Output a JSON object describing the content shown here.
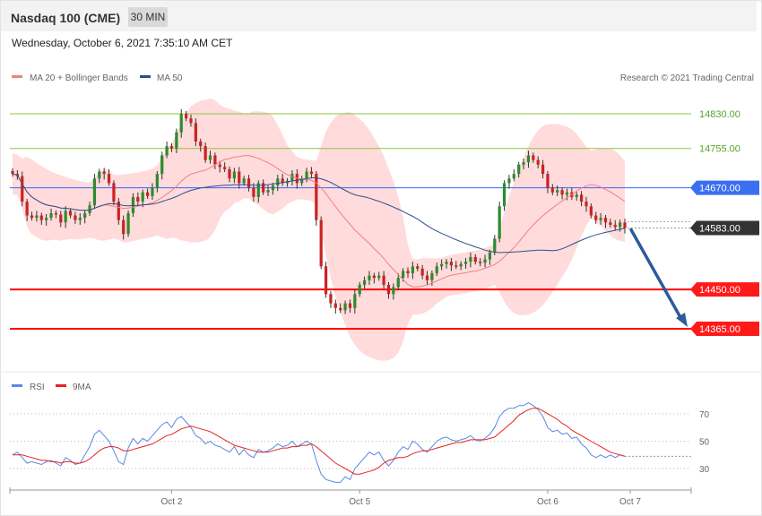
{
  "header": {
    "title": "Nasdaq 100 (CME)",
    "timeframe": "30 MIN"
  },
  "date": "Wednesday, October 6, 2021 7:35:10 AM CET",
  "legend": {
    "bb": "MA 20 + Bollinger Bands",
    "ma50": "MA 50",
    "rsi": "RSI",
    "ma9": "9MA"
  },
  "credit": "Research © 2021 Trading Central",
  "colors": {
    "resistance": "#8dc63f",
    "pivot": "#3366ff",
    "support": "#ff0000",
    "current": "#333333",
    "bands": "#ffd5d5",
    "ma50": "#2c4f8c",
    "bull": "#2e8b2e",
    "bear": "#cc2222",
    "arrow": "#2f5a9a",
    "rsi": "#5b87e0",
    "rsi_ma": "#e52222"
  },
  "chart_data": [
    {
      "type": "candlestick",
      "title": "Nasdaq 100 (CME)",
      "timeframe": "30 MIN",
      "ylim": [
        14300,
        14860
      ],
      "x_ticks": [
        "Oct 2",
        "Oct 5",
        "Oct 6",
        "Oct 7"
      ],
      "levels": [
        {
          "label": "14830.00",
          "value": 14830,
          "kind": "resistance"
        },
        {
          "label": "14755.00",
          "value": 14755,
          "kind": "resistance"
        },
        {
          "label": "14670.00",
          "value": 14670,
          "kind": "pivot"
        },
        {
          "label": "14583.00",
          "value": 14583,
          "kind": "current"
        },
        {
          "label": "14450.00",
          "value": 14450,
          "kind": "support"
        },
        {
          "label": "14365.00",
          "value": 14365,
          "kind": "support"
        }
      ],
      "close": [
        14700,
        14695,
        14640,
        14610,
        14605,
        14610,
        14600,
        14605,
        14615,
        14612,
        14595,
        14620,
        14610,
        14600,
        14605,
        14615,
        14632,
        14690,
        14705,
        14700,
        14680,
        14640,
        14600,
        14570,
        14615,
        14650,
        14640,
        14660,
        14652,
        14670,
        14700,
        14740,
        14760,
        14755,
        14790,
        14830,
        14820,
        14810,
        14770,
        14760,
        14730,
        14740,
        14720,
        14715,
        14710,
        14690,
        14705,
        14680,
        14690,
        14670,
        14650,
        14680,
        14660,
        14665,
        14675,
        14690,
        14680,
        14685,
        14700,
        14680,
        14690,
        14705,
        14700,
        14600,
        14500,
        14440,
        14420,
        14410,
        14405,
        14420,
        14410,
        14440,
        14460,
        14470,
        14480,
        14475,
        14480,
        14460,
        14440,
        14455,
        14475,
        14490,
        14485,
        14500,
        14495,
        14480,
        14470,
        14485,
        14500,
        14505,
        14510,
        14502,
        14500,
        14505,
        14510,
        14520,
        14510,
        14508,
        14515,
        14530,
        14560,
        14630,
        14680,
        14690,
        14700,
        14720,
        14725,
        14740,
        14730,
        14720,
        14700,
        14670,
        14660,
        14665,
        14655,
        14660,
        14650,
        14655,
        14640,
        14630,
        14610,
        14600,
        14605,
        14595,
        14590,
        14585,
        14595,
        14583
      ],
      "rsi": {
        "ticks": [
          "70",
          "50",
          "30"
        ],
        "ylim": [
          17,
          81
        ]
      },
      "rsi_values": [
        40,
        42,
        38,
        34,
        35,
        34,
        33,
        35,
        36,
        34,
        32,
        38,
        36,
        33,
        34,
        40,
        46,
        55,
        58,
        54,
        50,
        43,
        35,
        33,
        45,
        52,
        48,
        52,
        50,
        54,
        58,
        62,
        64,
        60,
        66,
        68,
        64,
        60,
        54,
        52,
        48,
        50,
        47,
        46,
        44,
        42,
        46,
        40,
        44,
        40,
        38,
        44,
        42,
        43,
        45,
        48,
        46,
        47,
        50,
        46,
        48,
        50,
        48,
        36,
        26,
        22,
        21,
        20,
        20,
        24,
        22,
        30,
        34,
        38,
        42,
        40,
        42,
        36,
        32,
        36,
        42,
        46,
        44,
        50,
        48,
        44,
        42,
        46,
        50,
        52,
        53,
        51,
        50,
        51,
        52,
        54,
        51,
        50,
        52,
        55,
        60,
        68,
        72,
        74,
        74,
        76,
        76,
        78,
        76,
        73,
        68,
        60,
        57,
        58,
        55,
        56,
        52,
        53,
        48,
        45,
        40,
        38,
        40,
        38,
        40,
        38,
        40,
        39
      ],
      "rsi_ma_values": [
        40,
        40,
        40,
        39,
        38,
        37,
        36,
        36,
        35,
        35,
        34,
        35,
        35,
        34,
        34,
        35,
        37,
        40,
        43,
        45,
        46,
        46,
        45,
        43,
        43,
        44,
        45,
        46,
        47,
        48,
        50,
        52,
        54,
        55,
        57,
        59,
        60,
        61,
        60,
        59,
        58,
        57,
        55,
        53,
        51,
        49,
        47,
        46,
        45,
        44,
        43,
        42,
        42,
        42,
        43,
        44,
        45,
        45,
        46,
        46,
        47,
        47,
        48,
        46,
        43,
        40,
        37,
        34,
        32,
        30,
        28,
        26,
        26,
        27,
        28,
        29,
        31,
        34,
        36,
        37,
        38,
        38,
        39,
        41,
        42,
        43,
        43,
        44,
        45,
        46,
        47,
        48,
        49,
        49,
        50,
        51,
        51,
        51,
        51,
        52,
        53,
        56,
        59,
        62,
        65,
        69,
        71,
        73,
        74,
        74,
        72,
        70,
        68,
        66,
        63,
        61,
        58,
        56,
        54,
        52,
        50,
        48,
        46,
        44,
        42,
        41,
        40,
        39
      ]
    }
  ]
}
